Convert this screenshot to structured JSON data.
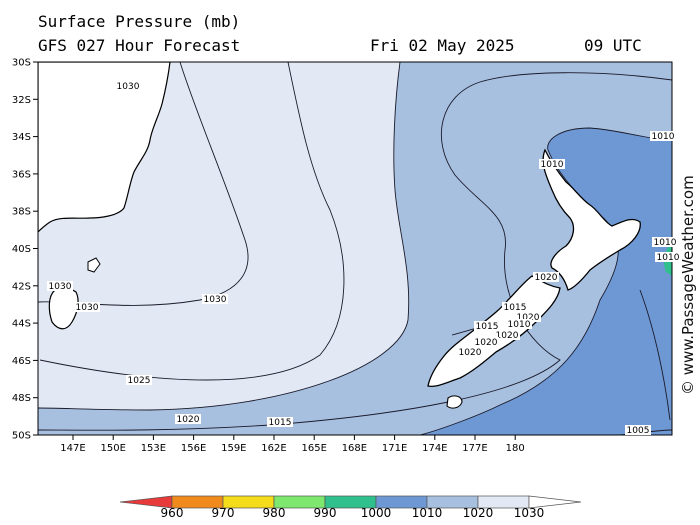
{
  "header": {
    "title": "Surface Pressure (mb)",
    "subtitle": "GFS 027 Hour Forecast",
    "date": "Fri 02 May 2025",
    "time": "09 UTC"
  },
  "axes": {
    "lat_labels": [
      "30S",
      "32S",
      "34S",
      "36S",
      "38S",
      "40S",
      "42S",
      "44S",
      "46S",
      "48S",
      "50S"
    ],
    "lon_labels": [
      "147E",
      "150E",
      "153E",
      "156E",
      "159E",
      "162E",
      "165E",
      "168E",
      "171E",
      "174E",
      "177E",
      "180"
    ]
  },
  "contour_labels": [
    "1030",
    "1030",
    "1030",
    "1030",
    "1025",
    "1020",
    "1015",
    "1010",
    "1010",
    "1015",
    "1020",
    "1015",
    "1020",
    "1020",
    "1020",
    "1010",
    "1020",
    "1005",
    "1010",
    "1010"
  ],
  "legend": {
    "labels": [
      "960",
      "970",
      "980",
      "990",
      "1000",
      "1010",
      "1020",
      "1030"
    ],
    "colors": [
      "#e83a3a",
      "#f08a1c",
      "#f5dc1a",
      "#7ee86e",
      "#2fc08e",
      "#6d98d4",
      "#a8c0e0",
      "#e2e9f4",
      "#ffffff"
    ]
  },
  "colors": {
    "land": "#ffffff",
    "band_1020_1030": "#e2e9f4",
    "band_1010_1020": "#a8c0e0",
    "band_1000_1010": "#6d98d4"
  },
  "watermark": "© www.PassageWeather.com"
}
